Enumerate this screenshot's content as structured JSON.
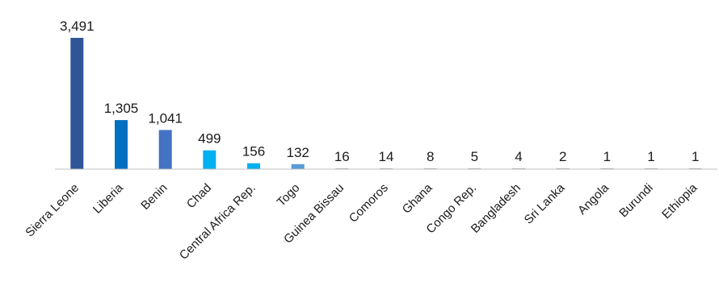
{
  "chart_data": {
    "type": "bar",
    "title": "",
    "xlabel": "",
    "ylabel": "",
    "categories": [
      "Sierra Leone",
      "Liberia",
      "Benin",
      "Chad",
      "Central Africa Rep.",
      "Togo",
      "Guinea Bissau",
      "Comoros",
      "Ghana",
      "Congo Rep.",
      "Bangladesh",
      "Sri Lanka",
      "Angola",
      "Burundi",
      "Ethiopia"
    ],
    "values": [
      3491,
      1305,
      1041,
      499,
      156,
      132,
      16,
      14,
      8,
      5,
      4,
      2,
      1,
      1,
      1
    ],
    "value_labels": [
      "3,491",
      "1,305",
      "1,041",
      "499",
      "156",
      "132",
      "16",
      "14",
      "8",
      "5",
      "4",
      "2",
      "1",
      "1",
      "1"
    ],
    "bar_colors": [
      "#2f5597",
      "#0070c0",
      "#4472c4",
      "#00b0f0",
      "#00b0f0",
      "#5b9bd5",
      "#a5a5a5",
      "#a5a5a5",
      "#a5a5a5",
      "#a5a5a5",
      "#a5a5a5",
      "#a5a5a5",
      "#a5a5a5",
      "#a5a5a5",
      "#a5a5a5"
    ],
    "ylim": [
      0,
      3491
    ],
    "grid": false,
    "legend": "none",
    "axis_color": "#bfbfbf"
  }
}
